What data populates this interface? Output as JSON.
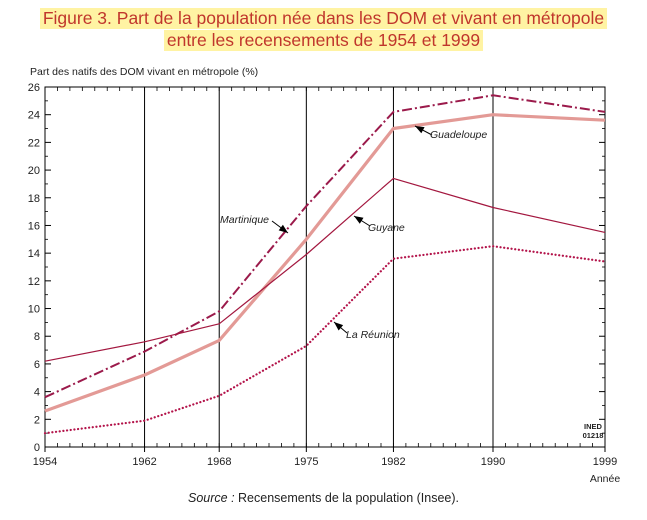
{
  "title": {
    "line1": "Figure 3. Part de la population née dans les DOM et vivant en métropole",
    "line2": "entre les recensements de 1954 et 1999"
  },
  "source": {
    "label": "Source :",
    "text": "Recensements de la population (Insee)."
  },
  "chart_data": {
    "type": "line",
    "ylabel": "Part des natifs des DOM vivant en métropole (%)",
    "xlabel": "Année",
    "ylim": [
      0,
      26
    ],
    "yticks": [
      0,
      2,
      4,
      6,
      8,
      10,
      12,
      14,
      16,
      18,
      20,
      22,
      24,
      26
    ],
    "xlim": [
      1954,
      1999
    ],
    "xticks": [
      1954,
      1962,
      1968,
      1975,
      1982,
      1990,
      1999
    ],
    "x": [
      1954,
      1962,
      1968,
      1975,
      1982,
      1990,
      1999
    ],
    "series": [
      {
        "name": "Martinique",
        "values": [
          3.6,
          6.9,
          9.8,
          17.4,
          24.2,
          25.4,
          24.2
        ],
        "color": "#9b1a4b",
        "style": "dashdot"
      },
      {
        "name": "Guadeloupe",
        "values": [
          2.6,
          5.2,
          7.7,
          15.0,
          23.0,
          24.0,
          23.6
        ],
        "color": "#e39a96",
        "style": "thick"
      },
      {
        "name": "Guyane",
        "values": [
          6.2,
          7.6,
          8.9,
          13.9,
          19.4,
          17.3,
          15.5
        ],
        "color": "#a3173f",
        "style": "thin"
      },
      {
        "name": "La Réunion",
        "values": [
          1.0,
          1.9,
          3.7,
          7.3,
          13.6,
          14.5,
          13.4
        ],
        "color": "#b3134a",
        "style": "dotted"
      }
    ],
    "annotations": [
      {
        "label": "Guadeloupe",
        "series": "Guadeloupe"
      },
      {
        "label": "Martinique",
        "series": "Martinique"
      },
      {
        "label": "Guyane",
        "series": "Guyane"
      },
      {
        "label": "La Réunion",
        "series": "La Réunion"
      }
    ],
    "corner_note": [
      "INED",
      "01218"
    ]
  }
}
